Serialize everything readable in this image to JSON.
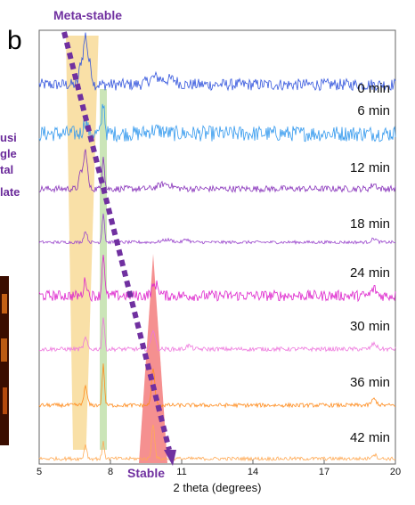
{
  "figure": {
    "panel_label": "b",
    "left_caption_lines": [
      "usi",
      "gle",
      "tal",
      "late"
    ],
    "colors": {
      "metastable_band": "#f7d58a",
      "intermediate_band": "#b9dca0",
      "stable_band": "#f26b6b",
      "arrow": "#7030a0",
      "inset_image_dark": "#3a0d00",
      "inset_image_hot": "#e8761a"
    }
  },
  "chart_data": {
    "type": "line",
    "xlabel": "2 theta (degrees)",
    "ylabel": "",
    "xlim": [
      5,
      20
    ],
    "xticks": [
      {
        "value": 5,
        "label": "5"
      },
      {
        "value": 8,
        "label": "8"
      },
      {
        "value": 11,
        "label": "11"
      },
      {
        "value": 14,
        "label": "14"
      },
      {
        "value": 17,
        "label": "17"
      },
      {
        "value": 20,
        "label": "20"
      }
    ],
    "grid": false,
    "legend": "none",
    "annotations": {
      "top": "Meta-stable",
      "bottom": "Stable"
    },
    "highlight_bands": [
      {
        "kind": "meta-stable",
        "x_range": [
          6.5,
          7.2
        ]
      },
      {
        "kind": "intermediate",
        "x_range": [
          7.55,
          7.85
        ]
      },
      {
        "kind": "stable",
        "x_range": [
          9.2,
          10.4
        ],
        "apex_x": 9.8
      }
    ],
    "series": [
      {
        "name": "0 min",
        "color": "#3355dd",
        "peaks": [
          {
            "x": 6.95,
            "h": 1.0,
            "w": 0.12
          },
          {
            "x": 6.75,
            "h": 0.4,
            "w": 0.1
          },
          {
            "x": 7.15,
            "h": 0.35,
            "w": 0.1
          },
          {
            "x": 9.9,
            "h": 0.15,
            "w": 0.4
          },
          {
            "x": 10.6,
            "h": 0.1,
            "w": 0.3
          }
        ],
        "noise": 0.12
      },
      {
        "name": "6 min",
        "color": "#3399ee",
        "peaks": [
          {
            "x": 6.95,
            "h": 0.35,
            "w": 0.12
          },
          {
            "x": 7.7,
            "h": 0.9,
            "w": 0.08
          },
          {
            "x": 9.9,
            "h": 0.1,
            "w": 0.4
          }
        ],
        "noise": 0.22
      },
      {
        "name": "12 min",
        "color": "#8833bb",
        "peaks": [
          {
            "x": 6.95,
            "h": 0.95,
            "w": 0.11
          },
          {
            "x": 6.75,
            "h": 0.4,
            "w": 0.1
          },
          {
            "x": 7.7,
            "h": 0.85,
            "w": 0.07
          },
          {
            "x": 10.3,
            "h": 0.12,
            "w": 0.4
          },
          {
            "x": 19.1,
            "h": 0.12,
            "w": 0.15
          }
        ],
        "noise": 0.08
      },
      {
        "name": "18 min",
        "color": "#9944cc",
        "peaks": [
          {
            "x": 6.95,
            "h": 0.35,
            "w": 0.1
          },
          {
            "x": 7.7,
            "h": 0.95,
            "w": 0.07
          },
          {
            "x": 10.4,
            "h": 0.08,
            "w": 0.3
          },
          {
            "x": 11.2,
            "h": 0.1,
            "w": 0.15
          },
          {
            "x": 19.1,
            "h": 0.12,
            "w": 0.15
          }
        ],
        "noise": 0.05
      },
      {
        "name": "24 min",
        "color": "#dd22cc",
        "peaks": [
          {
            "x": 6.95,
            "h": 0.35,
            "w": 0.1
          },
          {
            "x": 7.7,
            "h": 1.0,
            "w": 0.07
          },
          {
            "x": 9.9,
            "h": 0.25,
            "w": 0.2
          },
          {
            "x": 19.1,
            "h": 0.15,
            "w": 0.15
          }
        ],
        "noise": 0.12
      },
      {
        "name": "30 min",
        "color": "#ee77dd",
        "peaks": [
          {
            "x": 6.95,
            "h": 0.3,
            "w": 0.1
          },
          {
            "x": 7.7,
            "h": 0.9,
            "w": 0.07
          },
          {
            "x": 9.8,
            "h": 0.55,
            "w": 0.12
          },
          {
            "x": 11.3,
            "h": 0.1,
            "w": 0.15
          },
          {
            "x": 19.1,
            "h": 0.15,
            "w": 0.15
          }
        ],
        "noise": 0.06
      },
      {
        "name": "36 min",
        "color": "#ff8a1a",
        "peaks": [
          {
            "x": 6.95,
            "h": 0.45,
            "w": 0.1
          },
          {
            "x": 7.7,
            "h": 1.0,
            "w": 0.07
          },
          {
            "x": 9.8,
            "h": 0.9,
            "w": 0.1
          },
          {
            "x": 19.1,
            "h": 0.15,
            "w": 0.15
          }
        ],
        "noise": 0.05
      },
      {
        "name": "42 min",
        "color": "#ffaa55",
        "peaks": [
          {
            "x": 6.95,
            "h": 0.4,
            "w": 0.08
          },
          {
            "x": 7.7,
            "h": 0.45,
            "w": 0.07
          },
          {
            "x": 9.8,
            "h": 1.0,
            "w": 0.09
          },
          {
            "x": 19.1,
            "h": 0.12,
            "w": 0.15
          }
        ],
        "noise": 0.05
      }
    ]
  }
}
